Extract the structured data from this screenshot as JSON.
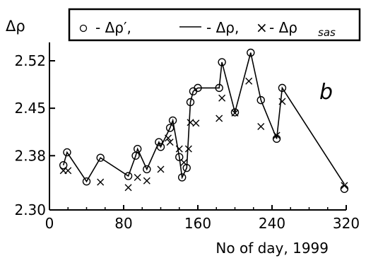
{
  "chart_data": {
    "type": "scatter",
    "title": "",
    "panel_label": "b",
    "xlabel": "No of day, 1999",
    "ylabel": "Δρ",
    "xlim": [
      0,
      320
    ],
    "ylim": [
      2.3,
      2.55
    ],
    "x_ticks": [
      0,
      80,
      160,
      240,
      320
    ],
    "x_tick_labels": [
      "0",
      "80",
      "160",
      "240",
      "320"
    ],
    "y_ticks": [
      2.3,
      2.38,
      2.45,
      2.52
    ],
    "y_tick_labels": [
      "2.30",
      "2.38",
      "2.45",
      "2.52"
    ],
    "grid": false,
    "legend_position": "top",
    "legend": {
      "open_circle": "- Δρ′,",
      "line": "- Δρ,",
      "cross_symbol": "×",
      "cross": "- Δρ",
      "cross_subscript": "sas"
    },
    "series": [
      {
        "name": "Δρ′",
        "marker": "circle",
        "x": [
          15,
          19,
          40,
          55,
          85,
          93,
          95,
          105,
          118,
          120,
          130,
          133,
          140,
          143,
          148,
          152,
          155,
          160,
          183,
          186,
          200,
          217,
          228,
          245,
          251,
          318
        ],
        "y": [
          2.366,
          2.385,
          2.342,
          2.377,
          2.35,
          2.38,
          2.39,
          2.36,
          2.4,
          2.393,
          2.421,
          2.432,
          2.378,
          2.348,
          2.362,
          2.459,
          2.475,
          2.48,
          2.48,
          2.518,
          2.444,
          2.532,
          2.462,
          2.405,
          2.48,
          2.331
        ]
      },
      {
        "name": "Δρ",
        "marker": "line",
        "x": [
          15,
          19,
          40,
          55,
          85,
          93,
          95,
          105,
          118,
          120,
          130,
          133,
          140,
          143,
          148,
          152,
          155,
          160,
          183,
          186,
          200,
          217,
          228,
          245,
          251,
          318
        ],
        "y": [
          2.366,
          2.385,
          2.342,
          2.377,
          2.35,
          2.38,
          2.39,
          2.36,
          2.4,
          2.393,
          2.421,
          2.432,
          2.378,
          2.348,
          2.362,
          2.459,
          2.475,
          2.48,
          2.48,
          2.518,
          2.444,
          2.532,
          2.462,
          2.405,
          2.48,
          2.338
        ]
      },
      {
        "name": "Δρ sas",
        "marker": "cross",
        "x": [
          15,
          20,
          55,
          85,
          95,
          105,
          120,
          128,
          130,
          140,
          145,
          150,
          152,
          158,
          183,
          186,
          200,
          215,
          228,
          245,
          251,
          318
        ],
        "y": [
          2.358,
          2.358,
          2.341,
          2.333,
          2.348,
          2.343,
          2.36,
          2.406,
          2.4,
          2.39,
          2.37,
          2.39,
          2.429,
          2.428,
          2.435,
          2.465,
          2.443,
          2.49,
          2.423,
          2.41,
          2.46,
          2.336
        ]
      }
    ]
  }
}
